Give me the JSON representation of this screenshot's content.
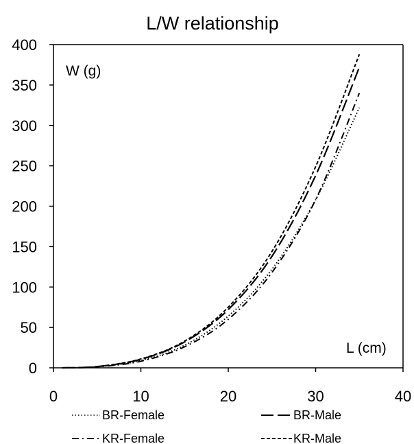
{
  "chart_data": {
    "type": "line",
    "title": "L/W relationship",
    "xlabel": "L (cm)",
    "ylabel": "W (g)",
    "xlim": [
      0,
      40
    ],
    "ylim": [
      0,
      400
    ],
    "xticks": [
      0,
      10,
      20,
      30,
      40
    ],
    "yticks": [
      0,
      50,
      100,
      150,
      200,
      250,
      300,
      350,
      400
    ],
    "xtick_labels": [
      "0",
      "10",
      "20",
      "30",
      "40"
    ],
    "ytick_labels": [
      "0",
      "50",
      "100",
      "150",
      "200",
      "250",
      "300",
      "350",
      "400"
    ],
    "grid": false,
    "legend_position": "bottom",
    "series": [
      {
        "name": "BR-Female",
        "line_style": "dotted",
        "color": "#000000",
        "x": [
          1,
          5,
          10,
          15,
          20,
          25,
          30,
          35
        ],
        "y": [
          0.01,
          1.3,
          9,
          28,
          64,
          122,
          208,
          322
        ]
      },
      {
        "name": "BR-Male",
        "line_style": "long-dash",
        "color": "#000000",
        "x": [
          1,
          5,
          10,
          15,
          20,
          25,
          30,
          35
        ],
        "y": [
          0.01,
          1.5,
          10.5,
          32,
          72,
          138,
          238,
          372
        ]
      },
      {
        "name": "KR-Female",
        "line_style": "dash-dot",
        "color": "#000000",
        "x": [
          1,
          5,
          10,
          15,
          20,
          25,
          30,
          35
        ],
        "y": [
          0.01,
          1.2,
          8.2,
          26,
          60,
          118,
          208,
          340
        ]
      },
      {
        "name": "KR-Male",
        "line_style": "short-dash",
        "color": "#000000",
        "x": [
          1,
          5,
          10,
          15,
          20,
          25,
          30,
          35
        ],
        "y": [
          0.01,
          1.6,
          11,
          33,
          75,
          144,
          249,
          388
        ]
      }
    ]
  }
}
